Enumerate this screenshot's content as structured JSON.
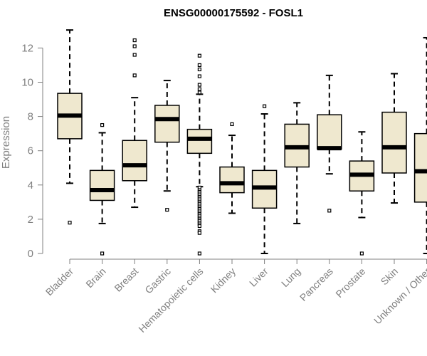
{
  "chart_data": {
    "type": "boxplot",
    "title": "ENSG00000175592 - FOSL1",
    "xlabel": "",
    "ylabel": "Expression",
    "ylim": [
      0,
      13
    ],
    "yticks": [
      0,
      2,
      4,
      6,
      8,
      10,
      12
    ],
    "box_color": "#efe8cf",
    "categories": [
      "Bladder",
      "Brain",
      "Breast",
      "Gastric",
      "Hematopoietic cells",
      "Kidney",
      "Liver",
      "Lung",
      "Pancreas",
      "Prostate",
      "Skin",
      "Unknown / Other"
    ],
    "boxes": [
      {
        "min": 4.1,
        "q1": 6.7,
        "median": 8.05,
        "q3": 9.35,
        "max": 13.05,
        "outliers": [
          1.8
        ]
      },
      {
        "min": 1.75,
        "q1": 3.1,
        "median": 3.7,
        "q3": 4.85,
        "max": 7.05,
        "outliers": [
          7.5,
          0.0
        ]
      },
      {
        "min": 2.7,
        "q1": 4.25,
        "median": 5.15,
        "q3": 6.6,
        "max": 9.1,
        "outliers": [
          12.45,
          12.1,
          11.6,
          10.4
        ]
      },
      {
        "min": 3.65,
        "q1": 6.5,
        "median": 7.85,
        "q3": 8.65,
        "max": 10.1,
        "outliers": [
          2.55
        ]
      },
      {
        "min": 3.9,
        "q1": 5.85,
        "median": 6.7,
        "q3": 7.25,
        "max": 9.3,
        "outliers": [
          11.55,
          11.0,
          10.75,
          10.35,
          9.85,
          9.6,
          9.4,
          3.85,
          3.7,
          3.6,
          3.5,
          3.4,
          3.3,
          3.2,
          3.1,
          3.0,
          2.9,
          2.8,
          2.7,
          2.6,
          2.5,
          2.4,
          2.3,
          2.2,
          2.1,
          2.0,
          1.9,
          1.8,
          1.7,
          1.6,
          1.3,
          1.2,
          0.0
        ]
      },
      {
        "min": 2.35,
        "q1": 3.55,
        "median": 4.1,
        "q3": 5.05,
        "max": 6.9,
        "outliers": [
          7.55
        ]
      },
      {
        "min": 0.0,
        "q1": 2.65,
        "median": 3.85,
        "q3": 4.85,
        "max": 8.15,
        "outliers": [
          8.6
        ]
      },
      {
        "min": 1.75,
        "q1": 5.05,
        "median": 6.2,
        "q3": 7.55,
        "max": 8.8,
        "outliers": []
      },
      {
        "min": 4.65,
        "q1": 6.1,
        "median": 6.15,
        "q3": 8.1,
        "max": 10.4,
        "outliers": [
          2.5
        ]
      },
      {
        "min": 2.1,
        "q1": 3.65,
        "median": 4.6,
        "q3": 5.4,
        "max": 7.1,
        "outliers": [
          0.0
        ]
      },
      {
        "min": 2.95,
        "q1": 4.7,
        "median": 6.2,
        "q3": 8.25,
        "max": 10.5,
        "outliers": []
      },
      {
        "min": 0.0,
        "q1": 3.0,
        "median": 4.8,
        "q3": 7.0,
        "max": 12.6,
        "outliers": []
      }
    ]
  }
}
